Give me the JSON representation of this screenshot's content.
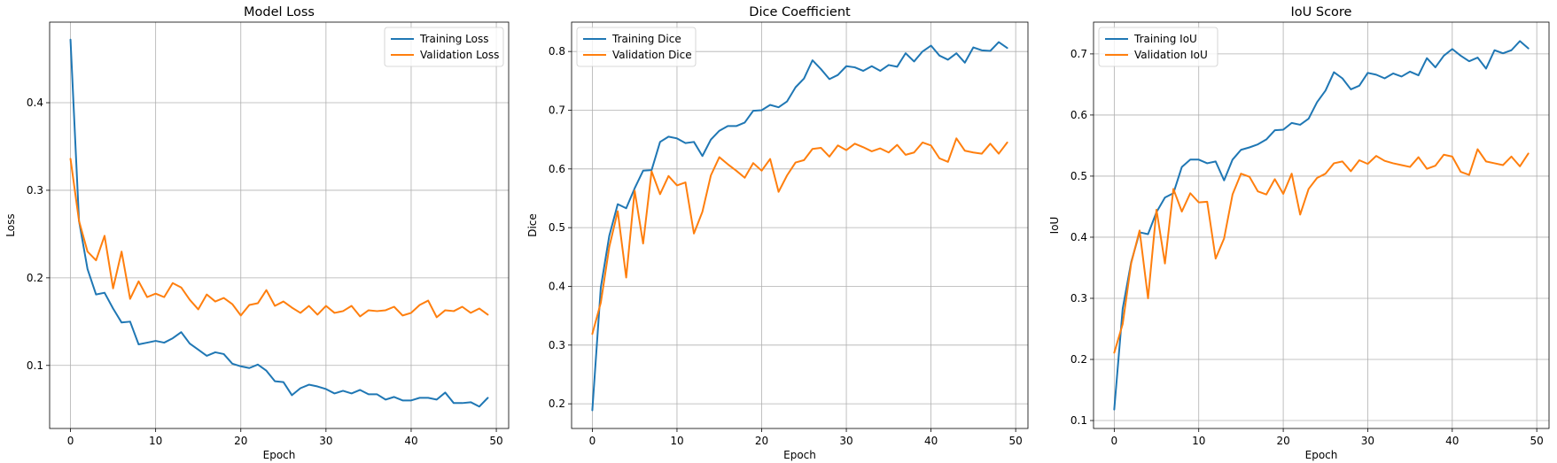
{
  "chart_data": [
    {
      "type": "line",
      "title": "Model Loss",
      "xlabel": "Epoch",
      "ylabel": "Loss",
      "xlim": [
        -2.45,
        51.45
      ],
      "ylim": [
        0.028,
        0.492
      ],
      "xticks": [
        0,
        10,
        20,
        30,
        40,
        50
      ],
      "yticks": [
        0.1,
        0.2,
        0.3,
        0.4
      ],
      "grid": true,
      "legend_position": "top-right",
      "x": [
        0,
        1,
        2,
        3,
        4,
        5,
        6,
        7,
        8,
        9,
        10,
        11,
        12,
        13,
        14,
        15,
        16,
        17,
        18,
        19,
        20,
        21,
        22,
        23,
        24,
        25,
        26,
        27,
        28,
        29,
        30,
        31,
        32,
        33,
        34,
        35,
        36,
        37,
        38,
        39,
        40,
        41,
        42,
        43,
        44,
        45,
        46,
        47,
        48,
        49
      ],
      "series": [
        {
          "name": "Training Loss",
          "color": "#1f77b4",
          "values": [
            0.472,
            0.265,
            0.21,
            0.181,
            0.183,
            0.165,
            0.149,
            0.15,
            0.124,
            0.126,
            0.128,
            0.126,
            0.131,
            0.138,
            0.125,
            0.118,
            0.111,
            0.115,
            0.113,
            0.102,
            0.099,
            0.097,
            0.101,
            0.094,
            0.082,
            0.081,
            0.066,
            0.074,
            0.078,
            0.076,
            0.073,
            0.068,
            0.071,
            0.068,
            0.072,
            0.067,
            0.067,
            0.061,
            0.064,
            0.06,
            0.06,
            0.063,
            0.063,
            0.061,
            0.069,
            0.057,
            0.057,
            0.058,
            0.053,
            0.063
          ]
        },
        {
          "name": "Validation Loss",
          "color": "#ff7f0e",
          "values": [
            0.336,
            0.265,
            0.23,
            0.22,
            0.248,
            0.188,
            0.23,
            0.176,
            0.196,
            0.178,
            0.182,
            0.178,
            0.194,
            0.189,
            0.175,
            0.164,
            0.181,
            0.173,
            0.177,
            0.17,
            0.157,
            0.169,
            0.171,
            0.186,
            0.168,
            0.173,
            0.166,
            0.16,
            0.168,
            0.158,
            0.168,
            0.16,
            0.162,
            0.168,
            0.156,
            0.163,
            0.162,
            0.163,
            0.167,
            0.157,
            0.16,
            0.169,
            0.174,
            0.155,
            0.163,
            0.162,
            0.167,
            0.16,
            0.165,
            0.158
          ]
        }
      ]
    },
    {
      "type": "line",
      "title": "Dice Coefficient",
      "xlabel": "Epoch",
      "ylabel": "Dice",
      "xlim": [
        -2.45,
        51.45
      ],
      "ylim": [
        0.158,
        0.85
      ],
      "xticks": [
        0,
        10,
        20,
        30,
        40,
        50
      ],
      "yticks": [
        0.2,
        0.3,
        0.4,
        0.5,
        0.6,
        0.7,
        0.8
      ],
      "grid": true,
      "legend_position": "top-left",
      "x": [
        0,
        1,
        2,
        3,
        4,
        5,
        6,
        7,
        8,
        9,
        10,
        11,
        12,
        13,
        14,
        15,
        16,
        17,
        18,
        19,
        20,
        21,
        22,
        23,
        24,
        25,
        26,
        27,
        28,
        29,
        30,
        31,
        32,
        33,
        34,
        35,
        36,
        37,
        38,
        39,
        40,
        41,
        42,
        43,
        44,
        45,
        46,
        47,
        48,
        49
      ],
      "series": [
        {
          "name": "Training Dice",
          "color": "#1f77b4",
          "values": [
            0.189,
            0.398,
            0.486,
            0.54,
            0.533,
            0.567,
            0.597,
            0.598,
            0.646,
            0.655,
            0.652,
            0.644,
            0.646,
            0.622,
            0.65,
            0.665,
            0.673,
            0.673,
            0.679,
            0.699,
            0.7,
            0.709,
            0.705,
            0.715,
            0.739,
            0.754,
            0.785,
            0.77,
            0.753,
            0.76,
            0.775,
            0.773,
            0.767,
            0.775,
            0.767,
            0.777,
            0.774,
            0.797,
            0.783,
            0.8,
            0.81,
            0.793,
            0.786,
            0.797,
            0.781,
            0.807,
            0.802,
            0.801,
            0.816,
            0.806
          ]
        },
        {
          "name": "Validation Dice",
          "color": "#ff7f0e",
          "values": [
            0.319,
            0.372,
            0.467,
            0.528,
            0.415,
            0.563,
            0.473,
            0.596,
            0.557,
            0.588,
            0.572,
            0.577,
            0.49,
            0.527,
            0.589,
            0.62,
            0.608,
            0.597,
            0.585,
            0.61,
            0.597,
            0.617,
            0.561,
            0.589,
            0.611,
            0.615,
            0.634,
            0.636,
            0.621,
            0.64,
            0.632,
            0.643,
            0.637,
            0.63,
            0.635,
            0.628,
            0.641,
            0.624,
            0.628,
            0.645,
            0.64,
            0.618,
            0.612,
            0.652,
            0.631,
            0.628,
            0.626,
            0.643,
            0.626,
            0.645
          ]
        }
      ]
    },
    {
      "type": "line",
      "title": "IoU Score",
      "xlabel": "Epoch",
      "ylabel": "IoU",
      "xlim": [
        -2.45,
        51.45
      ],
      "ylim": [
        0.087,
        0.752
      ],
      "xticks": [
        0,
        10,
        20,
        30,
        40,
        50
      ],
      "yticks": [
        0.1,
        0.2,
        0.3,
        0.4,
        0.5,
        0.6,
        0.7
      ],
      "grid": true,
      "legend_position": "top-left",
      "x": [
        0,
        1,
        2,
        3,
        4,
        5,
        6,
        7,
        8,
        9,
        10,
        11,
        12,
        13,
        14,
        15,
        16,
        17,
        18,
        19,
        20,
        21,
        22,
        23,
        24,
        25,
        26,
        27,
        28,
        29,
        30,
        31,
        32,
        33,
        34,
        35,
        36,
        37,
        38,
        39,
        40,
        41,
        42,
        43,
        44,
        45,
        46,
        47,
        48,
        49
      ],
      "series": [
        {
          "name": "Training IoU",
          "color": "#1f77b4",
          "values": [
            0.118,
            0.283,
            0.359,
            0.408,
            0.405,
            0.441,
            0.465,
            0.472,
            0.515,
            0.527,
            0.527,
            0.521,
            0.524,
            0.493,
            0.527,
            0.543,
            0.547,
            0.552,
            0.56,
            0.575,
            0.576,
            0.587,
            0.584,
            0.594,
            0.621,
            0.64,
            0.67,
            0.66,
            0.642,
            0.648,
            0.669,
            0.666,
            0.66,
            0.668,
            0.663,
            0.671,
            0.665,
            0.693,
            0.678,
            0.697,
            0.708,
            0.697,
            0.688,
            0.694,
            0.676,
            0.706,
            0.701,
            0.706,
            0.721,
            0.709
          ]
        },
        {
          "name": "Validation IoU",
          "color": "#ff7f0e",
          "values": [
            0.211,
            0.258,
            0.357,
            0.411,
            0.3,
            0.445,
            0.357,
            0.479,
            0.442,
            0.472,
            0.457,
            0.458,
            0.365,
            0.398,
            0.47,
            0.504,
            0.499,
            0.475,
            0.47,
            0.495,
            0.471,
            0.504,
            0.437,
            0.479,
            0.497,
            0.504,
            0.521,
            0.524,
            0.508,
            0.526,
            0.52,
            0.533,
            0.525,
            0.521,
            0.518,
            0.515,
            0.531,
            0.512,
            0.517,
            0.535,
            0.532,
            0.507,
            0.502,
            0.544,
            0.524,
            0.521,
            0.518,
            0.532,
            0.516,
            0.537
          ]
        }
      ]
    }
  ]
}
